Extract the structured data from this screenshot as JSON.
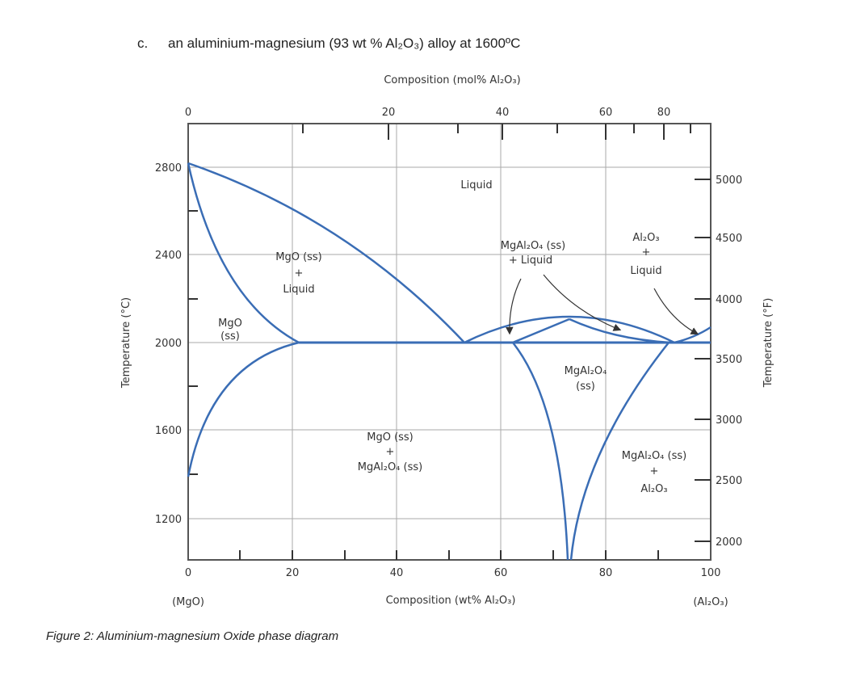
{
  "question": {
    "number": "c.",
    "text": "an aluminium-magnesium (93 wt % Al₂O₃) alloy at 1600ºC"
  },
  "caption": "Figure 2: Aluminium-magnesium Oxide phase diagram",
  "diagram": {
    "top_axis_label": "Composition (mol% Al₂O₃)",
    "top_ticks": [
      "0",
      "20",
      "40",
      "60",
      "80"
    ],
    "bottom_axis_label": "Composition (wt% Al₂O₃)",
    "bottom_ticks": [
      "0",
      "20",
      "40",
      "60",
      "80",
      "100"
    ],
    "left_end_label": "(MgO)",
    "right_end_label": "(Al₂O₃)",
    "left_axis_label": "Temperature (°C)",
    "left_ticks": [
      "2800",
      "2400",
      "2000",
      "1600",
      "1200"
    ],
    "right_axis_label": "Temperature (°F)",
    "right_ticks": [
      "5000",
      "4500",
      "4000",
      "3500",
      "3000",
      "2500",
      "2000"
    ],
    "line_color": "#3a6db5",
    "regions": {
      "liquid": "Liquid",
      "mgo_liquid": [
        "MgO (ss)",
        "+",
        "Liquid"
      ],
      "mgo_ss": [
        "MgO",
        "(ss)"
      ],
      "spinel_liquid": [
        "MgAl₂O₄ (ss)",
        "+ Liquid"
      ],
      "al2o3_liquid": [
        "Al₂O₃",
        "+",
        "Liquid"
      ],
      "spinel_ss": [
        "MgAl₂O₄",
        "(ss)"
      ],
      "mgo_spinel": [
        "MgO (ss)",
        "+",
        "MgAl₂O₄ (ss)"
      ],
      "spinel_al2o3": [
        "MgAl₂O₄ (ss)",
        "+",
        "Al₂O₃"
      ]
    }
  }
}
